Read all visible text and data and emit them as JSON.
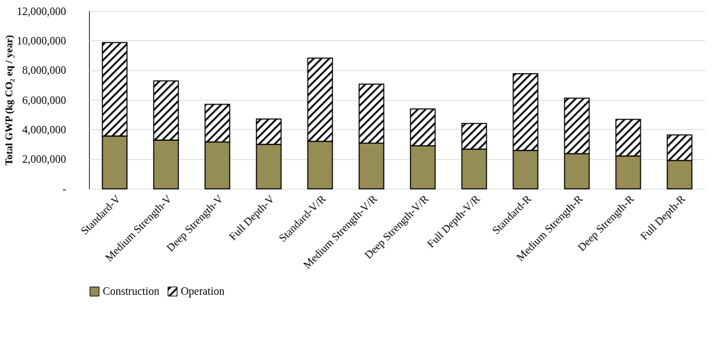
{
  "chart_data": {
    "type": "bar",
    "stacked": true,
    "ylabel": "Total GWP (kg CO₂ eq / year)",
    "categories": [
      "Standard-V",
      "Medium Strength-V",
      "Deep Strength-V",
      "Full Depth-V",
      "Standard-V/R",
      "Medium Strength-V/R",
      "Deep Strength-V/R",
      "Full Depth-V/R",
      "Standard-R",
      "Medium Strength-R",
      "Deep Strength-R",
      "Full Depth-R"
    ],
    "series": [
      {
        "name": "Construction",
        "color": "#968c55",
        "values": [
          3570000,
          3290000,
          3160000,
          3000000,
          3210000,
          3080000,
          2910000,
          2680000,
          2600000,
          2380000,
          2210000,
          1920000
        ]
      },
      {
        "name": "Operation",
        "color": "#000000",
        "values": [
          6300000,
          3990000,
          2540000,
          1710000,
          5600000,
          3980000,
          2480000,
          1730000,
          5160000,
          3730000,
          2480000,
          1710000
        ]
      }
    ],
    "ylim": [
      0,
      12000000
    ],
    "yticks": [
      {
        "value": 0,
        "label": "-"
      },
      {
        "value": 2000000,
        "label": "2,000,000"
      },
      {
        "value": 4000000,
        "label": "4,000,000"
      },
      {
        "value": 6000000,
        "label": "6,000,000"
      },
      {
        "value": 8000000,
        "label": "8,000,000"
      },
      {
        "value": 10000000,
        "label": "10,000,000"
      },
      {
        "value": 12000000,
        "label": "12,000,000"
      }
    ],
    "grid": "y",
    "legend": "bottom"
  }
}
